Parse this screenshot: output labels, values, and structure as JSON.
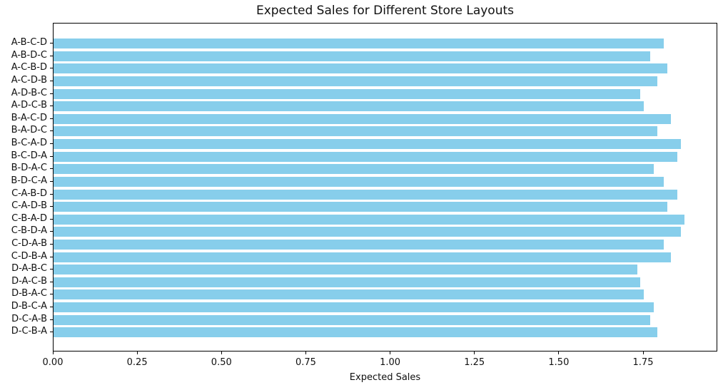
{
  "chart_data": {
    "type": "bar",
    "orientation": "horizontal",
    "title": "Expected Sales for Different Store Layouts",
    "xlabel": "Expected Sales",
    "ylabel": "",
    "categories": [
      "A-B-C-D",
      "A-B-D-C",
      "A-C-B-D",
      "A-C-D-B",
      "A-D-B-C",
      "A-D-C-B",
      "B-A-C-D",
      "B-A-D-C",
      "B-C-A-D",
      "B-C-D-A",
      "B-D-A-C",
      "B-D-C-A",
      "C-A-B-D",
      "C-A-D-B",
      "C-B-A-D",
      "C-B-D-A",
      "C-D-A-B",
      "C-D-B-A",
      "D-A-B-C",
      "D-A-C-B",
      "D-B-A-C",
      "D-B-C-A",
      "D-C-A-B",
      "D-C-B-A"
    ],
    "values": [
      1.81,
      1.77,
      1.82,
      1.79,
      1.74,
      1.75,
      1.83,
      1.79,
      1.86,
      1.85,
      1.78,
      1.81,
      1.85,
      1.82,
      1.87,
      1.86,
      1.81,
      1.83,
      1.73,
      1.74,
      1.75,
      1.78,
      1.77,
      1.79
    ],
    "xlim": [
      0,
      1.97
    ],
    "xticks": [
      "0.00",
      "0.25",
      "0.50",
      "0.75",
      "1.00",
      "1.25",
      "1.50",
      "1.75"
    ],
    "bar_color": "#87CEEB",
    "axis_color": "#000000",
    "grid": false,
    "legend": false
  }
}
